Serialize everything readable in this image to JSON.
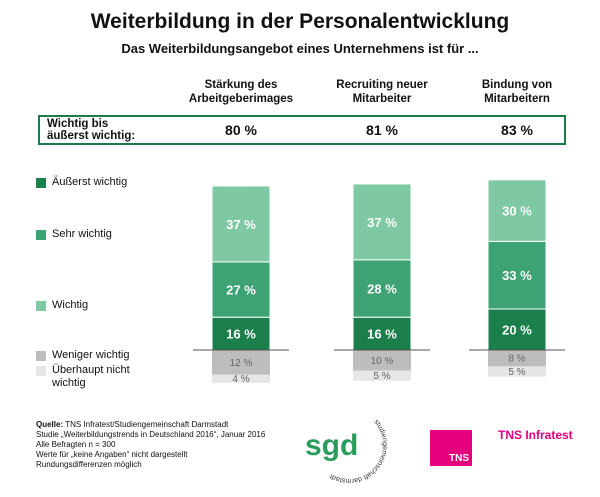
{
  "title": "Weiterbildung in der Personalentwicklung",
  "subtitle": "Das Weiterbildungsangebot eines Unternehmens ist für ...",
  "summary": {
    "label": "Wichtig bis\näußerst wichtig:",
    "values": [
      "80 %",
      "81 %",
      "83 %"
    ]
  },
  "legend": [
    {
      "label": "Äußerst wichtig",
      "color": "#1a7f4b"
    },
    {
      "label": "Sehr wichtig",
      "color": "#3da374"
    },
    {
      "label": "Wichtig",
      "color": "#7ec8a3"
    },
    {
      "label": "Weniger wichtig",
      "color": "#bdbdbd"
    },
    {
      "label": "Überhaupt nicht\nwichtig",
      "color": "#e6e6e6"
    }
  ],
  "chart_data": {
    "type": "bar",
    "stacked": true,
    "categories": [
      "Stärkung des\nArbeitgeberimages",
      "Recruiting neuer\nMitarbeiter",
      "Bindung von\nMitarbeitern"
    ],
    "series": [
      {
        "name": "Äußerst wichtig",
        "values": [
          16,
          16,
          20
        ],
        "labels": [
          "16 %",
          "16 %",
          "20 %"
        ],
        "color": "#1a7f4b",
        "direction": "up"
      },
      {
        "name": "Sehr wichtig",
        "values": [
          27,
          28,
          33
        ],
        "labels": [
          "27 %",
          "28 %",
          "33 %"
        ],
        "color": "#3da374",
        "direction": "up"
      },
      {
        "name": "Wichtig",
        "values": [
          37,
          37,
          30
        ],
        "labels": [
          "37 %",
          "37 %",
          "30 %"
        ],
        "color": "#7ec8a3",
        "direction": "up"
      },
      {
        "name": "Weniger wichtig",
        "values": [
          12,
          10,
          8
        ],
        "labels": [
          "12 %",
          "10 %",
          "8 %"
        ],
        "color": "#bdbdbd",
        "direction": "down"
      },
      {
        "name": "Überhaupt nicht\nwichtig",
        "values": [
          4,
          5,
          5
        ],
        "labels": [
          "4 %",
          "5 %",
          "5 %"
        ],
        "color": "#e6e6e6",
        "direction": "down"
      }
    ]
  },
  "source": {
    "label": "Quelle:",
    "lines": [
      "TNS Infratest/Studiengemeinschaft Darmstadt",
      "Studie „Weiterbildungstrends in Deutschland 2016“, Januar 2016",
      "Alle Befragten n = 300",
      "Werte für „keine Angaben“ nicht dargestellt",
      "Rundungsdifferenzen möglich"
    ]
  },
  "logos": {
    "sgd_mark": "sgd",
    "sgd_ring": "studiengemeinschaft darmstadt",
    "tns_box": "TNS",
    "tns_text": "TNS Infratest"
  }
}
